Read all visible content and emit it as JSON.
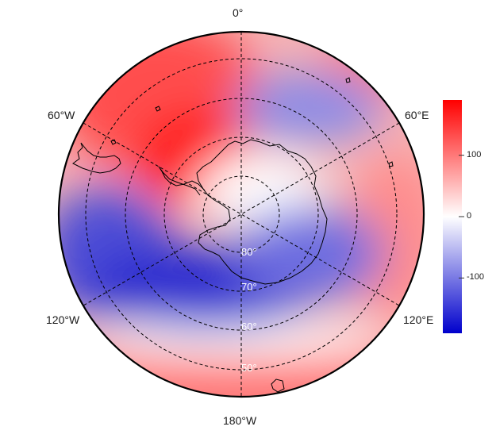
{
  "map": {
    "projection": "south-polar-stereographic",
    "longitude_labels": {
      "top": "0°",
      "upper_left": "60°W",
      "upper_right": "60°E",
      "lower_left": "120°W",
      "lower_right": "120°E",
      "bottom": "180°W"
    },
    "latitude_labels": [
      "80°",
      "70°",
      "60°",
      "50°"
    ],
    "field_colors": {
      "high": "#ff0000",
      "mid": "#ffffff",
      "low": "#0000cc"
    }
  },
  "colorbar": {
    "ticks": [
      "100",
      "0",
      "-100"
    ],
    "tick_values": [
      100,
      0,
      -100
    ],
    "range": [
      -190,
      190
    ]
  }
}
